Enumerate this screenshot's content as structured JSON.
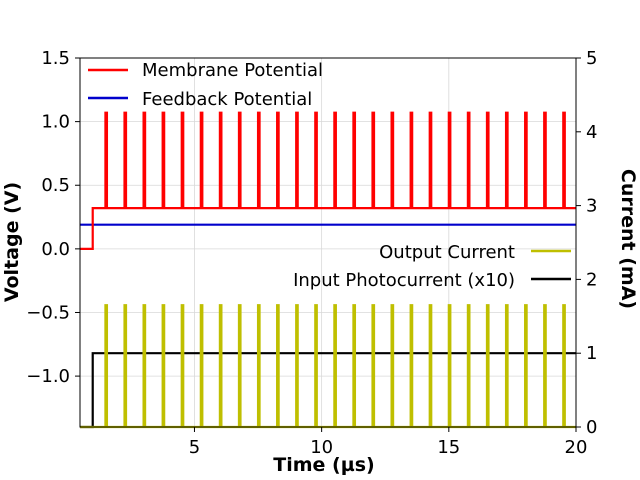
{
  "chart_data": {
    "type": "line",
    "title": "",
    "xlabel": "Time (µs)",
    "ylabel_left": "Voltage (V)",
    "ylabel_right": "Current (mA)",
    "xlim": [
      0.5,
      20
    ],
    "ylim_left": [
      -1.4,
      1.5
    ],
    "ylim_right": [
      0,
      5
    ],
    "grid": true,
    "x_ticks": [
      5,
      10,
      15,
      20
    ],
    "x_tick_labels": [
      "5",
      "10",
      "15",
      "20"
    ],
    "y_left_ticks": [
      1.5,
      1.0,
      0.5,
      0.0,
      -0.5,
      -1.0
    ],
    "y_left_tick_labels": [
      "1.5",
      "1.0",
      "0.5",
      "0.0",
      "−0.5",
      "−1.0"
    ],
    "y_right_ticks": [
      5,
      4,
      3,
      2,
      1,
      0
    ],
    "y_right_tick_labels": [
      "5",
      "4",
      "3",
      "2",
      "1",
      "0"
    ],
    "spike_times": [
      1.5,
      2.25,
      3.0,
      3.75,
      4.5,
      5.25,
      6.0,
      6.75,
      7.5,
      8.25,
      9.0,
      9.75,
      10.5,
      11.25,
      12.0,
      12.75,
      13.5,
      14.25,
      15.0,
      15.75,
      16.5,
      17.25,
      18.0,
      18.75,
      19.5
    ],
    "series": [
      {
        "name": "Membrane Potential",
        "axis": "left",
        "color": "#ff0000",
        "step_time": 1.0,
        "baseline_before": 0.0,
        "baseline_after": 0.32,
        "spike_peak": 1.07
      },
      {
        "name": "Feedback Potential",
        "axis": "left",
        "color": "#0000cc",
        "constant": 0.19
      },
      {
        "name": "Output Current",
        "axis": "right",
        "color": "#bfbf00",
        "baseline": 0.0,
        "spike_peak": 1.65
      },
      {
        "name": "Input Photocurrent (x10)",
        "axis": "right",
        "color": "#000000",
        "step_time": 1.0,
        "value_before": 0.0,
        "value_after": 1.0
      }
    ],
    "legend_left": [
      "Membrane Potential",
      "Feedback Potential"
    ],
    "legend_right": [
      "Output Current",
      "Input Photocurrent (x10)"
    ]
  }
}
